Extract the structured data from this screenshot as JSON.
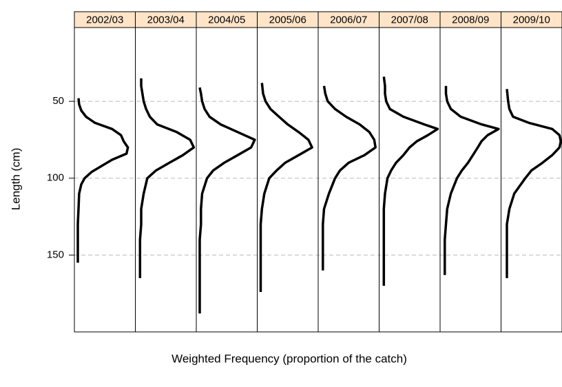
{
  "chart_data": {
    "type": "line",
    "xlabel": "Weighted Frequency (proportion of the catch)",
    "ylabel": "Length (cm)",
    "ylim": [
      2,
      200
    ],
    "y_inverted": true,
    "yticks": [
      50,
      100,
      150
    ],
    "xlim": [
      -0.0028,
      0.047
    ],
    "grid": true,
    "color": "#000000",
    "strip_color": "#ffe4c8",
    "panels": [
      {
        "name": "2002/03",
        "length": [
          48,
          52,
          56,
          60,
          64,
          68,
          72,
          76,
          80,
          84,
          88,
          92,
          96,
          100,
          104,
          110,
          120,
          130,
          140,
          150,
          155
        ],
        "frequency": [
          0.0006,
          0.0011,
          0.0028,
          0.0067,
          0.014,
          0.028,
          0.0353,
          0.0375,
          0.0409,
          0.0398,
          0.028,
          0.0196,
          0.0112,
          0.0056,
          0.0028,
          0.0011,
          0.0006,
          0,
          0,
          0,
          0
        ]
      },
      {
        "name": "2003/04",
        "length": [
          35,
          40,
          45,
          50,
          55,
          60,
          65,
          70,
          75,
          80,
          85,
          90,
          95,
          100,
          110,
          120,
          130,
          140,
          150,
          160,
          165
        ],
        "frequency": [
          0.002,
          0.002,
          0.003,
          0.004,
          0.006,
          0.009,
          0.015,
          0.031,
          0.042,
          0.045,
          0.036,
          0.025,
          0.014,
          0.007,
          0.004,
          0.002,
          0.002,
          0.001,
          0.001,
          0.001,
          0.001
        ]
      },
      {
        "name": "2004/05",
        "length": [
          41,
          45,
          50,
          55,
          60,
          65,
          70,
          75,
          80,
          85,
          90,
          95,
          100,
          110,
          120,
          130,
          140,
          150,
          160,
          170,
          180,
          188
        ],
        "frequency": [
          0,
          0.001,
          0.002,
          0.004,
          0.008,
          0.017,
          0.031,
          0.045,
          0.042,
          0.031,
          0.02,
          0.011,
          0.006,
          0.002,
          0.001,
          0.001,
          0,
          0,
          0,
          0,
          0,
          0
        ]
      },
      {
        "name": "2005/06",
        "length": [
          38,
          45,
          50,
          55,
          60,
          65,
          70,
          75,
          80,
          85,
          90,
          95,
          100,
          110,
          120,
          130,
          140,
          150,
          160,
          174
        ],
        "frequency": [
          0.001,
          0.002,
          0.004,
          0.008,
          0.015,
          0.022,
          0.031,
          0.039,
          0.042,
          0.031,
          0.02,
          0.013,
          0.007,
          0.003,
          0.001,
          0,
          0,
          0,
          0,
          0
        ]
      },
      {
        "name": "2006/07",
        "length": [
          40,
          45,
          50,
          55,
          60,
          65,
          70,
          75,
          80,
          85,
          90,
          95,
          100,
          110,
          120,
          130,
          140,
          150,
          160
        ],
        "frequency": [
          0.002,
          0.003,
          0.005,
          0.011,
          0.02,
          0.031,
          0.039,
          0.043,
          0.044,
          0.035,
          0.022,
          0.015,
          0.011,
          0.006,
          0.002,
          0.001,
          0.001,
          0.001,
          0.001
        ]
      },
      {
        "name": "2007/08",
        "length": [
          34,
          40,
          45,
          50,
          55,
          60,
          65,
          68,
          72,
          76,
          80,
          85,
          90,
          95,
          100,
          110,
          120,
          130,
          140,
          150,
          160,
          170
        ],
        "frequency": [
          0.001,
          0.002,
          0.002,
          0.003,
          0.006,
          0.017,
          0.034,
          0.045,
          0.037,
          0.028,
          0.022,
          0.017,
          0.011,
          0.007,
          0.004,
          0.002,
          0.001,
          0.001,
          0.001,
          0.001,
          0.001,
          0.001
        ]
      },
      {
        "name": "2008/09",
        "length": [
          40,
          45,
          50,
          55,
          60,
          65,
          68,
          72,
          76,
          80,
          85,
          90,
          95,
          100,
          110,
          120,
          130,
          140,
          150,
          160,
          163
        ],
        "frequency": [
          0.002,
          0.002,
          0.003,
          0.006,
          0.014,
          0.031,
          0.045,
          0.036,
          0.031,
          0.028,
          0.024,
          0.02,
          0.015,
          0.011,
          0.006,
          0.003,
          0.002,
          0.001,
          0.001,
          0.001,
          0.001
        ]
      },
      {
        "name": "2009/10",
        "length": [
          42,
          50,
          55,
          60,
          64,
          68,
          72,
          76,
          80,
          85,
          90,
          95,
          100,
          110,
          120,
          130,
          140,
          150,
          160,
          165
        ],
        "frequency": [
          0.002,
          0.003,
          0.004,
          0.007,
          0.02,
          0.039,
          0.045,
          0.046,
          0.045,
          0.039,
          0.031,
          0.022,
          0.017,
          0.008,
          0.004,
          0.002,
          0.002,
          0.002,
          0.002,
          0.002
        ]
      }
    ]
  }
}
